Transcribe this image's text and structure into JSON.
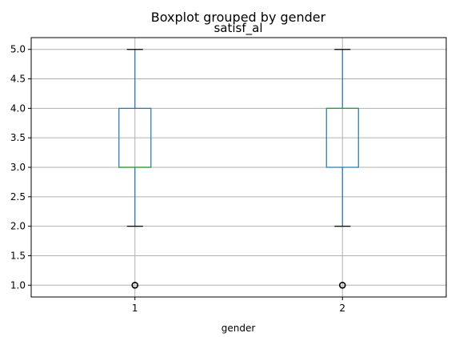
{
  "chart_data": {
    "type": "boxplot",
    "suptitle": "Boxplot grouped by gender",
    "title": "satisf_al",
    "xlabel": "gender",
    "ylabel": "",
    "categories": [
      "1",
      "2"
    ],
    "ylim": [
      0.8,
      5.2
    ],
    "yticks": [
      1.0,
      1.5,
      2.0,
      2.5,
      3.0,
      3.5,
      4.0,
      4.5,
      5.0
    ],
    "ytick_labels": [
      "1.0",
      "1.5",
      "2.0",
      "2.5",
      "3.0",
      "3.5",
      "4.0",
      "4.5",
      "5.0"
    ],
    "grid": true,
    "boxes": [
      {
        "category": "1",
        "whisker_low": 2.0,
        "q1": 3.0,
        "median": 3.0,
        "q3": 4.0,
        "whisker_high": 5.0,
        "outliers": [
          1.0
        ]
      },
      {
        "category": "2",
        "whisker_low": 2.0,
        "q1": 3.0,
        "median": 4.0,
        "q3": 4.0,
        "whisker_high": 5.0,
        "outliers": [
          1.0
        ]
      }
    ],
    "colors": {
      "box": "#1f77b4",
      "median": "#2ca02c",
      "whisker": "#1f77b4",
      "cap": "#000000",
      "flier": "#000000",
      "grid": "#b0b0b0"
    }
  }
}
